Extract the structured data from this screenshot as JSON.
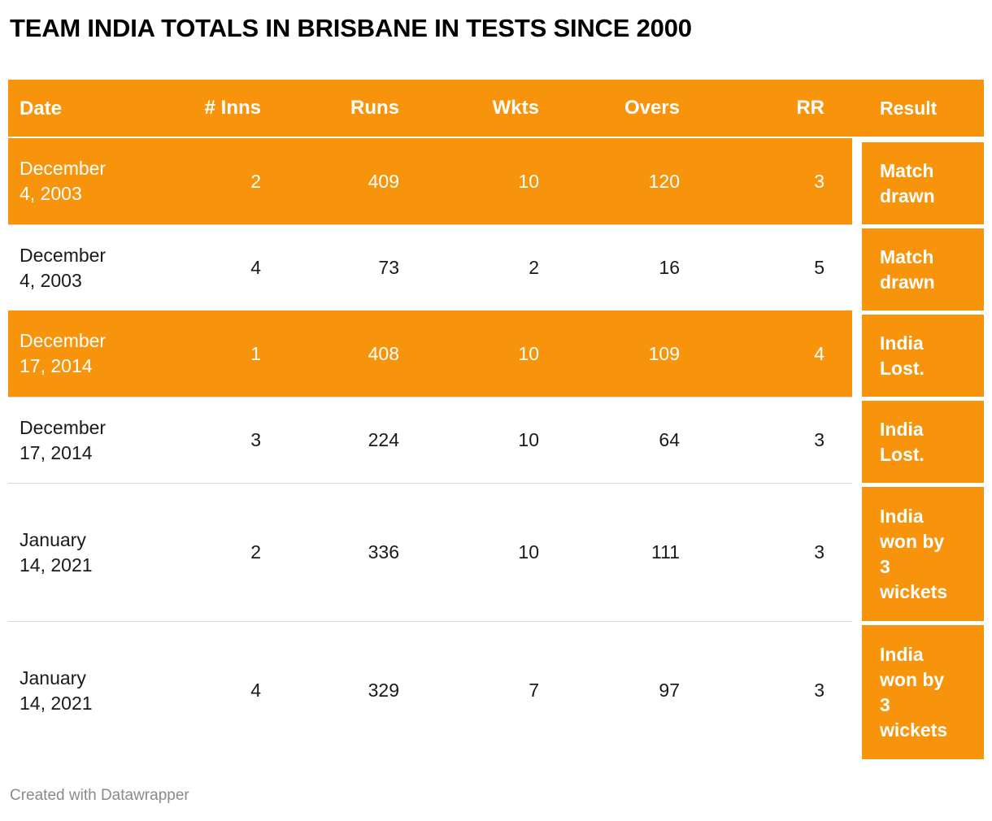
{
  "title": "TEAM INDIA TOTALS IN BRISBANE IN TESTS SINCE 2000",
  "attribution": "Created with Datawrapper",
  "colors": {
    "accent_orange": "#F8940B",
    "header_text": "#FFFFFF",
    "body_text": "#1A1A1A",
    "attribution_text": "#8A8A8A",
    "row_divider": "#D9D9D9"
  },
  "chart_data": {
    "type": "table",
    "title": "TEAM INDIA TOTALS IN BRISBANE IN TESTS SINCE 2000",
    "columns": [
      "Date",
      "# Inns",
      "Runs",
      "Wkts",
      "Overs",
      "RR",
      "Result"
    ],
    "rows": [
      {
        "date": "December 4, 2003",
        "inns": 2,
        "runs": 409,
        "wkts": 10,
        "overs": 120,
        "rr": 3,
        "result": "Match drawn",
        "highlighted": true
      },
      {
        "date": "December 4, 2003",
        "inns": 4,
        "runs": 73,
        "wkts": 2,
        "overs": 16,
        "rr": 5,
        "result": "Match drawn",
        "highlighted": false
      },
      {
        "date": "December 17, 2014",
        "inns": 1,
        "runs": 408,
        "wkts": 10,
        "overs": 109,
        "rr": 4,
        "result": "India Lost.",
        "highlighted": true
      },
      {
        "date": "December 17, 2014",
        "inns": 3,
        "runs": 224,
        "wkts": 10,
        "overs": 64,
        "rr": 3,
        "result": "India Lost.",
        "highlighted": false
      },
      {
        "date": "January 14, 2021",
        "inns": 2,
        "runs": 336,
        "wkts": 10,
        "overs": 111,
        "rr": 3,
        "result": "India won by 3 wickets",
        "highlighted": false
      },
      {
        "date": "January 14, 2021",
        "inns": 4,
        "runs": 329,
        "wkts": 7,
        "overs": 97,
        "rr": 3,
        "result": "India won by 3 wickets",
        "highlighted": false
      }
    ]
  }
}
